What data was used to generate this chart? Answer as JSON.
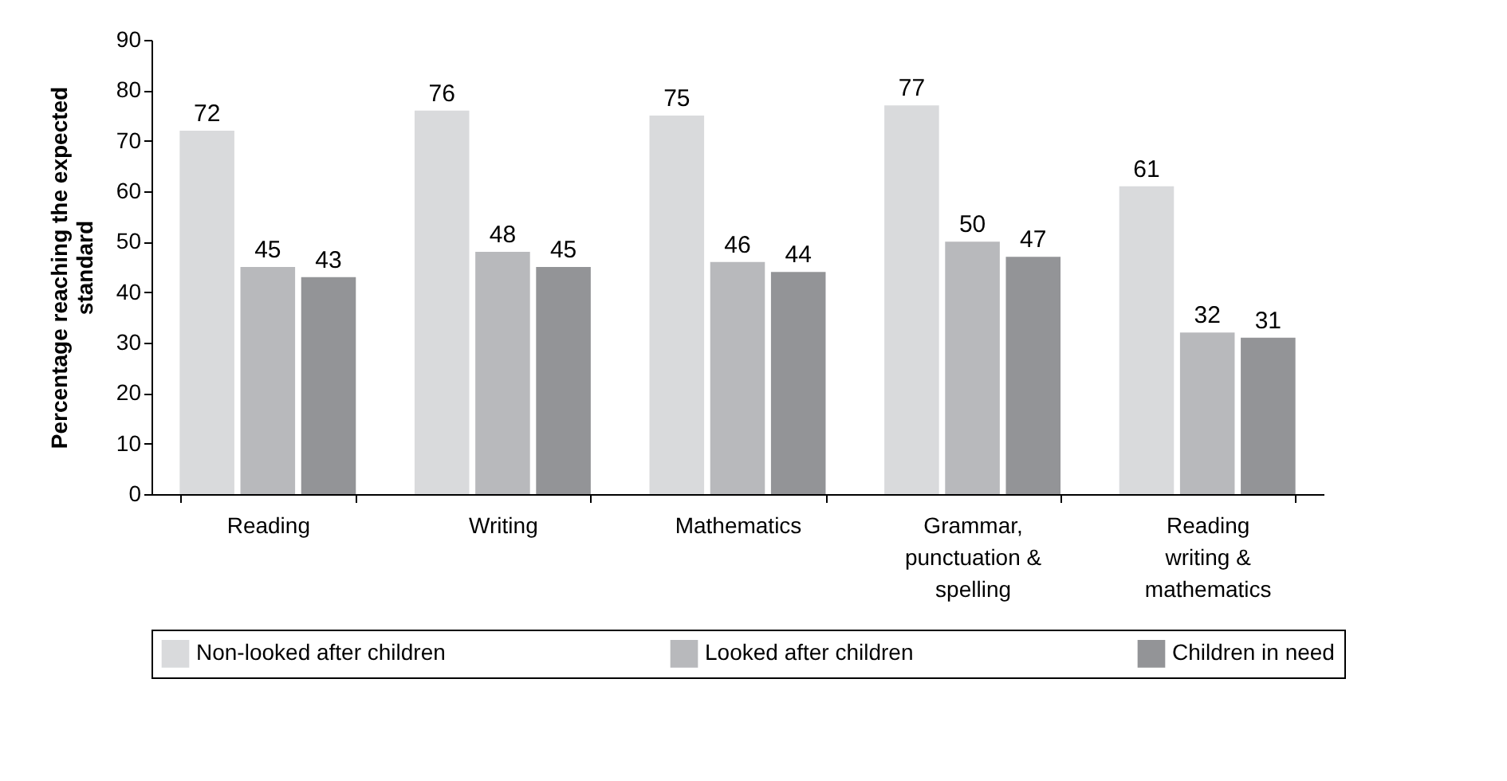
{
  "chart_data": {
    "type": "bar",
    "ylabel": "Percentage reaching the expected standard",
    "categories": [
      "Reading",
      "Writing",
      "Mathematics",
      "Grammar, punctuation & spelling",
      "Reading writing & mathematics"
    ],
    "series": [
      {
        "name": "Non-looked after children",
        "color": "#d9dadc",
        "values": [
          72,
          76,
          75,
          77,
          61
        ]
      },
      {
        "name": "Looked after children",
        "color": "#b8b9bc",
        "values": [
          45,
          48,
          46,
          50,
          32
        ]
      },
      {
        "name": "Children in need",
        "color": "#939497",
        "values": [
          43,
          45,
          44,
          47,
          31
        ]
      }
    ],
    "ylim": [
      0,
      90
    ],
    "yticks": [
      0,
      10,
      20,
      30,
      40,
      50,
      60,
      70,
      80,
      90
    ],
    "grid": false,
    "legend": "bottom",
    "data_labels": true
  }
}
